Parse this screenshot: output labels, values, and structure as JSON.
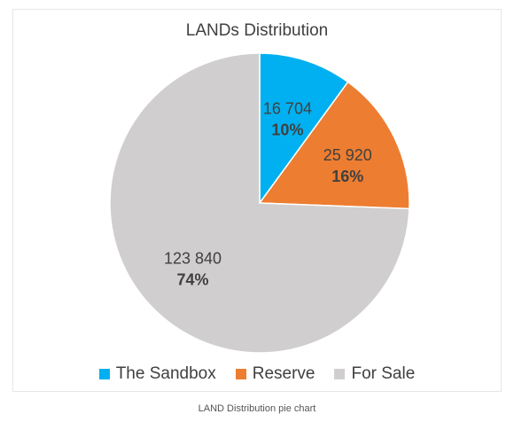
{
  "chart_data": {
    "type": "pie",
    "title": "LANDs Distribution",
    "categories": [
      "The Sandbox",
      "Reserve",
      "For Sale"
    ],
    "values": [
      16704,
      25920,
      123840
    ],
    "value_labels": [
      "16 704",
      "25 920",
      "123 840"
    ],
    "percent_labels": [
      "10%",
      "16%",
      "74%"
    ],
    "colors": [
      "#00b0f0",
      "#ed7d31",
      "#d0cece"
    ],
    "legend_position": "bottom",
    "start_angle_deg": 0,
    "direction": "clockwise"
  },
  "caption": "LAND Distribution pie chart"
}
